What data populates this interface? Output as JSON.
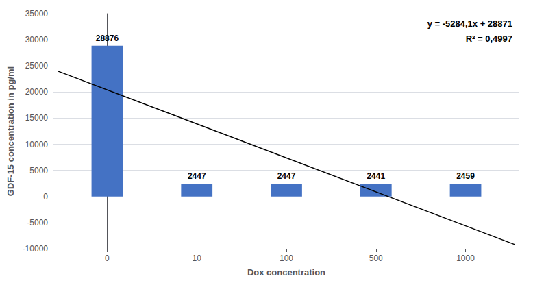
{
  "chart_data": {
    "type": "bar",
    "categories": [
      "0",
      "10",
      "100",
      "500",
      "1000"
    ],
    "values": [
      28876,
      2447,
      2447,
      2441,
      2459
    ],
    "color": "#4472C4",
    "data_labels": true,
    "xlabel": "Dox concentration",
    "ylabel": "GDF-15 concentration in pg/ml",
    "ylim": [
      -10000,
      35000
    ],
    "yticks": [
      -10000,
      -5000,
      0,
      5000,
      10000,
      15000,
      20000,
      25000,
      30000,
      35000
    ],
    "grid": true,
    "trendline": {
      "x": [
        -0.55,
        4.55
      ],
      "y": [
        24000,
        -9200
      ],
      "color": "black"
    },
    "annotations": [
      "y = -5284,1x + 28871",
      "R² = 0,4997"
    ]
  }
}
